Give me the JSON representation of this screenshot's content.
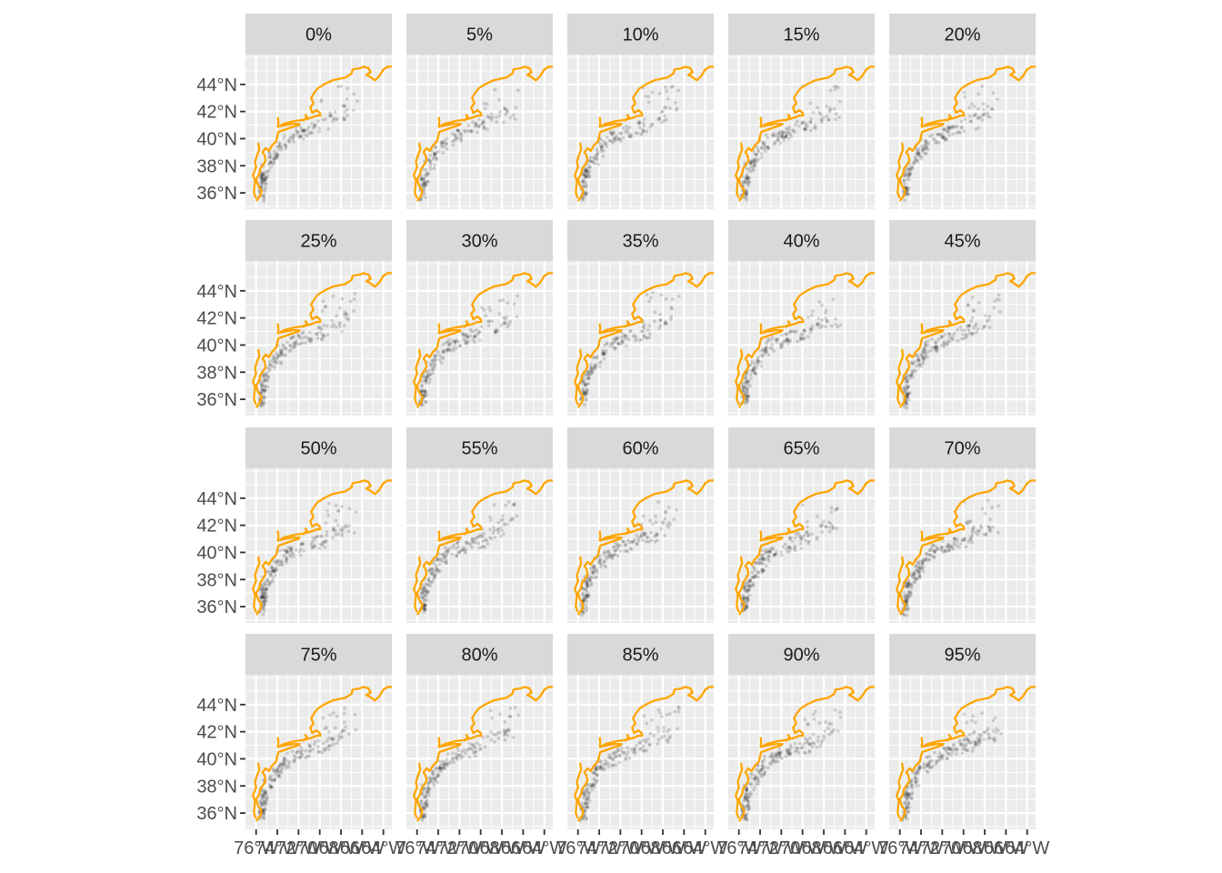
{
  "chart_data": {
    "type": "scatter",
    "title": "",
    "xlabel": "",
    "ylabel": "",
    "panel_labels": [
      "0%",
      "5%",
      "10%",
      "15%",
      "20%",
      "25%",
      "30%",
      "35%",
      "40%",
      "45%",
      "50%",
      "55%",
      "60%",
      "65%",
      "70%",
      "75%",
      "80%",
      "85%",
      "90%",
      "95%"
    ],
    "xlim": [
      -77,
      -63.2
    ],
    "ylim": [
      34.8,
      46.2
    ],
    "x_ticks": [
      -76,
      -74,
      -72,
      -70,
      -68,
      -66,
      -64
    ],
    "x_tick_labels": [
      "76°W",
      "74°W",
      "72°W",
      "70°W",
      "68°W",
      "66°W",
      "64°W"
    ],
    "y_ticks": [
      36,
      38,
      40,
      42,
      44
    ],
    "y_tick_labels": [
      "36°N",
      "38°N",
      "40°N",
      "42°N",
      "44°N"
    ],
    "point_color": "#000000",
    "point_alpha": 0.15,
    "coast_color": "#FFA500",
    "panel_bg": "#EBEBEB",
    "strip_bg": "#D9D9D9",
    "grid_color": "#FFFFFF",
    "coastline": [
      [
        [
          -76.0,
          35.4
        ],
        [
          -75.6,
          35.8
        ],
        [
          -75.5,
          36.2
        ],
        [
          -75.8,
          36.5
        ],
        [
          -76.0,
          37.0
        ],
        [
          -75.7,
          37.4
        ],
        [
          -75.6,
          37.8
        ],
        [
          -75.3,
          38.1
        ],
        [
          -75.1,
          38.4
        ],
        [
          -75.2,
          38.8
        ],
        [
          -75.4,
          39.0
        ],
        [
          -75.1,
          39.3
        ],
        [
          -74.8,
          39.1
        ],
        [
          -74.5,
          39.5
        ],
        [
          -74.1,
          39.8
        ],
        [
          -74.0,
          40.2
        ],
        [
          -73.9,
          40.5
        ],
        [
          -73.5,
          40.6
        ],
        [
          -72.8,
          40.8
        ],
        [
          -72.0,
          41.0
        ],
        [
          -71.9,
          41.1
        ],
        [
          -72.5,
          41.1
        ],
        [
          -73.2,
          41.0
        ],
        [
          -73.8,
          40.9
        ],
        [
          -73.4,
          41.1
        ],
        [
          -72.4,
          41.3
        ],
        [
          -71.5,
          41.4
        ],
        [
          -71.0,
          41.5
        ],
        [
          -70.6,
          41.6
        ],
        [
          -70.3,
          41.7
        ],
        [
          -69.95,
          41.7
        ],
        [
          -70.0,
          41.9
        ],
        [
          -70.3,
          42.1
        ],
        [
          -70.7,
          41.9
        ],
        [
          -70.9,
          42.3
        ],
        [
          -70.6,
          42.6
        ],
        [
          -70.8,
          43.0
        ],
        [
          -70.5,
          43.4
        ],
        [
          -70.2,
          43.7
        ],
        [
          -69.6,
          44.0
        ],
        [
          -68.8,
          44.3
        ],
        [
          -68.2,
          44.4
        ],
        [
          -67.6,
          44.5
        ],
        [
          -67.0,
          44.8
        ],
        [
          -66.9,
          45.1
        ],
        [
          -66.2,
          45.2
        ],
        [
          -65.9,
          45.3
        ],
        [
          -65.4,
          45.2
        ],
        [
          -65.2,
          44.9
        ],
        [
          -65.6,
          44.7
        ],
        [
          -65.3,
          44.6
        ],
        [
          -64.8,
          44.3
        ],
        [
          -64.4,
          44.6
        ],
        [
          -64.0,
          45.1
        ],
        [
          -63.6,
          45.3
        ],
        [
          -63.2,
          45.3
        ]
      ],
      [
        [
          -76.0,
          35.6
        ],
        [
          -76.2,
          36.0
        ],
        [
          -76.1,
          36.9
        ],
        [
          -76.3,
          37.3
        ],
        [
          -76.0,
          37.9
        ],
        [
          -76.1,
          38.3
        ],
        [
          -75.9,
          38.8
        ],
        [
          -75.7,
          39.2
        ],
        [
          -75.8,
          39.7
        ]
      ],
      [
        [
          -73.95,
          40.8
        ],
        [
          -73.9,
          41.2
        ],
        [
          -73.95,
          41.6
        ]
      ],
      [
        [
          -71.6,
          41.3
        ],
        [
          -71.2,
          41.6
        ],
        [
          -71.4,
          41.8
        ]
      ]
    ],
    "panels": [
      {
        "density": [
          0.95,
          0.75,
          0.5,
          0.35,
          0.25,
          0.15
        ],
        "scale": 1.0,
        "seed": 1
      },
      {
        "density": [
          0.8,
          0.8,
          0.55,
          0.45,
          0.3,
          0.15
        ],
        "scale": 0.85,
        "seed": 2
      },
      {
        "density": [
          0.8,
          0.8,
          0.6,
          0.45,
          0.3,
          0.2
        ],
        "scale": 0.9,
        "seed": 3
      },
      {
        "density": [
          0.8,
          0.85,
          0.65,
          0.45,
          0.3,
          0.2
        ],
        "scale": 0.95,
        "seed": 4
      },
      {
        "density": [
          0.85,
          0.85,
          0.6,
          0.45,
          0.3,
          0.2
        ],
        "scale": 0.9,
        "seed": 5
      },
      {
        "density": [
          0.9,
          0.85,
          0.6,
          0.45,
          0.35,
          0.2
        ],
        "scale": 0.9,
        "seed": 6
      },
      {
        "density": [
          0.85,
          0.85,
          0.65,
          0.45,
          0.35,
          0.2
        ],
        "scale": 0.9,
        "seed": 7
      },
      {
        "density": [
          0.85,
          0.8,
          0.6,
          0.45,
          0.3,
          0.15
        ],
        "scale": 0.85,
        "seed": 8
      },
      {
        "density": [
          0.9,
          0.85,
          0.65,
          0.45,
          0.3,
          0.15
        ],
        "scale": 0.9,
        "seed": 9
      },
      {
        "density": [
          0.9,
          0.9,
          0.65,
          0.45,
          0.3,
          0.15
        ],
        "scale": 0.95,
        "seed": 10
      },
      {
        "density": [
          1.0,
          0.9,
          0.6,
          0.4,
          0.35,
          0.15
        ],
        "scale": 0.95,
        "seed": 11
      },
      {
        "density": [
          0.9,
          0.9,
          0.65,
          0.5,
          0.4,
          0.2
        ],
        "scale": 0.9,
        "seed": 12
      },
      {
        "density": [
          0.9,
          0.95,
          0.65,
          0.5,
          0.3,
          0.15
        ],
        "scale": 0.95,
        "seed": 13
      },
      {
        "density": [
          1.0,
          0.9,
          0.6,
          0.45,
          0.3,
          0.15
        ],
        "scale": 0.95,
        "seed": 14
      },
      {
        "density": [
          1.0,
          0.95,
          0.65,
          0.45,
          0.35,
          0.2
        ],
        "scale": 1.0,
        "seed": 15
      },
      {
        "density": [
          1.0,
          0.9,
          0.6,
          0.4,
          0.3,
          0.2
        ],
        "scale": 0.95,
        "seed": 16
      },
      {
        "density": [
          0.95,
          0.9,
          0.6,
          0.4,
          0.3,
          0.2
        ],
        "scale": 0.9,
        "seed": 17
      },
      {
        "density": [
          0.95,
          0.9,
          0.6,
          0.45,
          0.35,
          0.15
        ],
        "scale": 0.9,
        "seed": 18
      },
      {
        "density": [
          1.0,
          0.85,
          0.7,
          0.5,
          0.35,
          0.25
        ],
        "scale": 0.95,
        "seed": 19
      },
      {
        "density": [
          0.85,
          0.8,
          0.6,
          0.65,
          0.6,
          0.25
        ],
        "scale": 0.95,
        "seed": 20
      }
    ]
  }
}
